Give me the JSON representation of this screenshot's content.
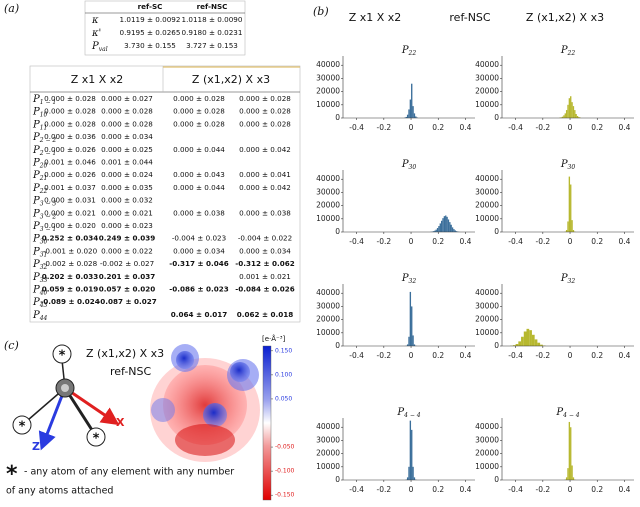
{
  "panel_labels": [
    "(a)",
    "(b)",
    "(c)"
  ],
  "kappa_table": {
    "columns": [
      "ref-SC",
      "ref-NSC"
    ],
    "rows": [
      {
        "label": "κ",
        "values": [
          "1.0119 ± 0.0092",
          "1.0118 ± 0.0090"
        ]
      },
      {
        "label": "κ'",
        "values": [
          "0.9195 ± 0.0265",
          "0.9180 ± 0.0231"
        ]
      },
      {
        "label": "P",
        "sub": "val",
        "values": [
          "3.730 ± 0.155",
          "3.727 ± 0.153"
        ]
      }
    ]
  },
  "population_table": {
    "columns": [
      "Z x1 X x2",
      "Z (x1,x2) X x3"
    ],
    "rows": [
      {
        "label": "P",
        "sub": "1 − 1",
        "cells": [
          "0.000 ± 0.028",
          "0.000 ± 0.027",
          "0.000 ± 0.028",
          "0.000 ± 0.028"
        ],
        "bold": []
      },
      {
        "label": "P",
        "sub": "10",
        "cells": [
          "0.000 ± 0.028",
          "0.000 ± 0.028",
          "0.000 ± 0.028",
          "0.000 ± 0.028"
        ],
        "bold": []
      },
      {
        "label": "P",
        "sub": "11",
        "cells": [
          "0.000 ± 0.028",
          "0.000 ± 0.028",
          "0.000 ± 0.028",
          "0.000 ± 0.028"
        ],
        "bold": []
      },
      {
        "label": "P",
        "sub": "2 − 2",
        "cells": [
          "0.000 ± 0.036",
          "0.000 ± 0.034",
          null,
          null
        ],
        "bold": []
      },
      {
        "label": "P",
        "sub": "2 − 1",
        "cells": [
          "0.000 ± 0.026",
          "0.000 ± 0.025",
          "0.000 ± 0.044",
          "0.000 ± 0.042"
        ],
        "bold": []
      },
      {
        "label": "P",
        "sub": "20",
        "cells": [
          "0.001 ± 0.046",
          "0.001 ± 0.044",
          null,
          null
        ],
        "bold": []
      },
      {
        "label": "P",
        "sub": "21",
        "cells": [
          "0.000 ± 0.026",
          "0.000 ± 0.024",
          "0.000 ± 0.043",
          "0.000 ± 0.041"
        ],
        "bold": []
      },
      {
        "label": "P",
        "sub": "22",
        "cells": [
          "0.001 ± 0.037",
          "0.000 ± 0.035",
          "0.000 ± 0.044",
          "0.000 ± 0.042"
        ],
        "bold": []
      },
      {
        "label": "P",
        "sub": "3 − 3",
        "cells": [
          "0.000 ± 0.031",
          "0.000 ± 0.032",
          null,
          null
        ],
        "bold": []
      },
      {
        "label": "P",
        "sub": "3 − 2",
        "cells": [
          "0.000 ± 0.021",
          "0.000 ± 0.021",
          "0.000 ± 0.038",
          "0.000 ± 0.038"
        ],
        "bold": []
      },
      {
        "label": "P",
        "sub": "3 − 1",
        "cells": [
          "0.000 ± 0.020",
          "0.000 ± 0.023",
          null,
          null
        ],
        "bold": []
      },
      {
        "label": "P",
        "sub": "30",
        "cells": [
          "0.252 ± 0.034",
          "0.249 ± 0.039",
          "-0.004 ± 0.023",
          "-0.004 ± 0.022"
        ],
        "bold": [
          0,
          1
        ]
      },
      {
        "label": "P",
        "sub": "31",
        "cells": [
          "-0.001 ± 0.020",
          "0.000 ± 0.022",
          "0.000 ± 0.034",
          "0.000 ± 0.034"
        ],
        "bold": []
      },
      {
        "label": "P",
        "sub": "32",
        "cells": [
          "-0.002 ± 0.028",
          "-0.002 ± 0.027",
          "-0.317 ± 0.046",
          "-0.312 ± 0.062"
        ],
        "bold": [
          2,
          3
        ]
      },
      {
        "label": "P",
        "sub": "33",
        "cells": [
          "0.202 ± 0.033",
          "0.201 ± 0.037",
          null,
          "0.001 ± 0.021"
        ],
        "bold": [
          0,
          1
        ]
      },
      {
        "label": "P",
        "sub": "40",
        "cells": [
          "0.059 ± 0.019",
          "0.057 ± 0.020",
          "-0.086 ± 0.023",
          "-0.084 ± 0.026"
        ],
        "bold": [
          0,
          1,
          2,
          3
        ]
      },
      {
        "label": "P",
        "sub": "43",
        "cells": [
          "-0.089 ± 0.024",
          "-0.087 ± 0.027",
          null,
          null
        ],
        "bold": [
          0,
          1
        ]
      },
      {
        "label": "P",
        "sub": "44",
        "cells": [
          null,
          null,
          "0.064 ± 0.017",
          "0.062 ± 0.018"
        ],
        "bold": [
          2,
          3
        ]
      }
    ]
  },
  "histogram_headers": [
    "Z x1 X x2",
    "ref-NSC",
    "Z (x1,x2) X x3"
  ],
  "chart_data": [
    {
      "type": "histogram",
      "title": "P",
      "title_subscript": "22",
      "color": "#3b6f9b",
      "bins": [
        -0.05,
        -0.04,
        -0.03,
        -0.02,
        -0.01,
        0,
        0.01,
        0.02,
        0.03,
        0.04,
        0.05
      ],
      "values": [
        300,
        800,
        2500,
        6500,
        14000,
        26000,
        9000,
        3500,
        1200,
        400
      ],
      "xlim": [
        -0.5,
        0.47
      ],
      "xticks": [
        -0.4,
        -0.2,
        0.0,
        0.2,
        0.4
      ],
      "ylim": [
        0,
        47000
      ],
      "yticks": [
        0,
        10000,
        20000,
        30000,
        40000
      ]
    },
    {
      "type": "histogram",
      "title": "P",
      "title_subscript": "22",
      "color": "#b7b82f",
      "bins": [
        -0.08,
        -0.07,
        -0.06,
        -0.05,
        -0.04,
        -0.03,
        -0.02,
        -0.01,
        0,
        0.01,
        0.02,
        0.03,
        0.04,
        0.05,
        0.06,
        0.07,
        0.08
      ],
      "values": [
        200,
        500,
        1000,
        2000,
        3500,
        6000,
        10000,
        15000,
        16500,
        12000,
        9000,
        6000,
        3000,
        1500,
        700,
        300
      ],
      "xlim": [
        -0.5,
        0.47
      ],
      "xticks": [
        -0.4,
        -0.2,
        0.0,
        0.2,
        0.4
      ],
      "ylim": [
        0,
        47000
      ],
      "yticks": [
        0,
        10000,
        20000,
        30000,
        40000
      ]
    },
    {
      "type": "histogram",
      "title": "P",
      "title_subscript": "30",
      "color": "#3b6f9b",
      "bins": [
        0.14,
        0.15,
        0.16,
        0.17,
        0.18,
        0.19,
        0.2,
        0.21,
        0.22,
        0.23,
        0.24,
        0.25,
        0.26,
        0.27,
        0.28,
        0.29,
        0.3,
        0.31,
        0.32,
        0.33,
        0.34,
        0.35,
        0.36
      ],
      "values": [
        100,
        300,
        600,
        1000,
        1800,
        3000,
        4500,
        6500,
        8500,
        10500,
        12000,
        12500,
        11500,
        9500,
        7500,
        5500,
        3500,
        2200,
        1200,
        600,
        300,
        100
      ],
      "xlim": [
        -0.5,
        0.47
      ],
      "xticks": [
        -0.4,
        -0.2,
        0.0,
        0.2,
        0.4
      ],
      "ylim": [
        0,
        47000
      ],
      "yticks": [
        0,
        10000,
        20000,
        30000,
        40000
      ]
    },
    {
      "type": "histogram",
      "title": "P",
      "title_subscript": "30",
      "color": "#b7b82f",
      "bins": [
        -0.04,
        -0.03,
        -0.02,
        -0.01,
        0,
        0.01,
        0.02,
        0.03,
        0.04
      ],
      "values": [
        300,
        1500,
        8000,
        42000,
        36000,
        9000,
        1500,
        300
      ],
      "xlim": [
        -0.5,
        0.47
      ],
      "xticks": [
        -0.4,
        -0.2,
        0.0,
        0.2,
        0.4
      ],
      "ylim": [
        0,
        47000
      ],
      "yticks": [
        0,
        10000,
        20000,
        30000,
        40000
      ]
    },
    {
      "type": "histogram",
      "title": "P",
      "title_subscript": "32",
      "color": "#3b6f9b",
      "bins": [
        -0.04,
        -0.03,
        -0.02,
        -0.01,
        0,
        0.01,
        0.02,
        0.03,
        0.04
      ],
      "values": [
        200,
        1200,
        7000,
        41000,
        30000,
        8000,
        1200,
        200
      ],
      "xlim": [
        -0.5,
        0.47
      ],
      "xticks": [
        -0.4,
        -0.2,
        0.0,
        0.2,
        0.4
      ],
      "ylim": [
        0,
        47000
      ],
      "yticks": [
        0,
        10000,
        20000,
        30000,
        40000
      ]
    },
    {
      "type": "histogram",
      "title": "P",
      "title_subscript": "32",
      "color": "#b7b82f",
      "bins": [
        -0.44,
        -0.42,
        -0.4,
        -0.38,
        -0.36,
        -0.34,
        -0.32,
        -0.3,
        -0.28,
        -0.26,
        -0.24,
        -0.22,
        -0.2,
        -0.18
      ],
      "values": [
        200,
        600,
        1500,
        3500,
        7000,
        11000,
        13000,
        12000,
        8500,
        5000,
        2500,
        1000,
        300
      ],
      "xlim": [
        -0.5,
        0.47
      ],
      "xticks": [
        -0.4,
        -0.2,
        0.0,
        0.2,
        0.4
      ],
      "ylim": [
        0,
        47000
      ],
      "yticks": [
        0,
        10000,
        20000,
        30000,
        40000
      ]
    },
    {
      "type": "histogram",
      "title": "P",
      "title_subscript": "4 − 4",
      "color": "#3b6f9b",
      "bins": [
        -0.04,
        -0.03,
        -0.02,
        -0.01,
        0,
        0.01,
        0.02,
        0.03,
        0.04
      ],
      "values": [
        300,
        2000,
        10000,
        45000,
        38000,
        10000,
        2000,
        300
      ],
      "xlim": [
        -0.5,
        0.47
      ],
      "xticks": [
        -0.4,
        -0.2,
        0.0,
        0.2,
        0.4
      ],
      "ylim": [
        0,
        47000
      ],
      "yticks": [
        0,
        10000,
        20000,
        30000,
        40000
      ]
    },
    {
      "type": "histogram",
      "title": "P",
      "title_subscript": "4 − 4",
      "color": "#b7b82f",
      "bins": [
        -0.04,
        -0.03,
        -0.02,
        -0.01,
        0,
        0.01,
        0.02,
        0.03,
        0.04
      ],
      "values": [
        300,
        2000,
        9000,
        44000,
        40000,
        11000,
        2000,
        300
      ],
      "xlim": [
        -0.5,
        0.47
      ],
      "xticks": [
        -0.4,
        -0.2,
        0.0,
        0.2,
        0.4
      ],
      "ylim": [
        0,
        47000
      ],
      "yticks": [
        0,
        10000,
        20000,
        30000,
        40000
      ]
    }
  ],
  "diagram": {
    "title": "Z (x1,x2) X x3",
    "subtitle": "ref-NSC",
    "axis_x": "X",
    "axis_z": "Z",
    "substituent": "*",
    "note_symbol": "*",
    "note_lines": [
      "- any atom of any element with any number",
      "of any atoms attached"
    ]
  },
  "colorbar": {
    "unit": "[e·Å⁻³]",
    "lim": [
      -0.16,
      0.16
    ],
    "ticks": [
      {
        "value": 0.15,
        "label": "0.150"
      },
      {
        "value": 0.1,
        "label": "0.100"
      },
      {
        "value": 0.05,
        "label": "0.050"
      },
      {
        "value": -0.05,
        "label": "-0.050"
      },
      {
        "value": -0.1,
        "label": "-0.100"
      },
      {
        "value": -0.15,
        "label": "-0.150"
      }
    ]
  }
}
